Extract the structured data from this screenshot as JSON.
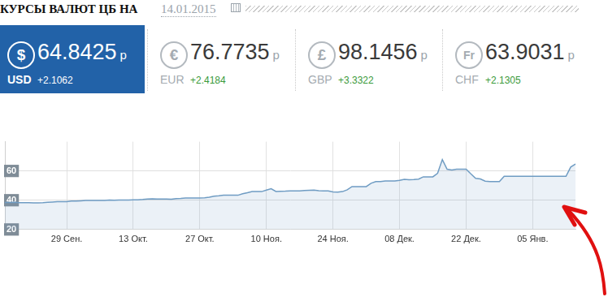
{
  "header": {
    "title": "КУРСЫ ВАЛЮТ ЦБ НА",
    "date": "14.01.2015"
  },
  "rates": [
    {
      "symbol": "$",
      "value": 64.8425,
      "unit": "р",
      "code": "USD",
      "change": "+2.1062"
    },
    {
      "symbol": "€",
      "value": 76.7735,
      "unit": "р",
      "code": "EUR",
      "change": "+2.4184"
    },
    {
      "symbol": "£",
      "value": 98.1456,
      "unit": "р",
      "code": "GBP",
      "change": "+3.3322"
    },
    {
      "symbol": "Fr",
      "value": 63.9031,
      "unit": "р",
      "code": "CHF",
      "change": "+2.1305"
    }
  ],
  "chart_data": {
    "type": "area",
    "color": "#6f9cc3",
    "grid": true,
    "ylim": [
      20,
      80
    ],
    "yticks": [
      20,
      40,
      60
    ],
    "categories": [
      null,
      null,
      null,
      null,
      null,
      null,
      null,
      null,
      null,
      null,
      null,
      null,
      null,
      "29 Сен.",
      null,
      null,
      null,
      null,
      null,
      null,
      null,
      null,
      null,
      null,
      null,
      null,
      null,
      "13 Окт.",
      null,
      null,
      null,
      null,
      null,
      null,
      null,
      null,
      null,
      null,
      null,
      null,
      null,
      "27 Окт.",
      null,
      null,
      null,
      null,
      null,
      null,
      null,
      null,
      null,
      null,
      null,
      null,
      null,
      "10 Ноя.",
      null,
      null,
      null,
      null,
      null,
      null,
      null,
      null,
      null,
      null,
      null,
      null,
      null,
      "24 Ноя.",
      null,
      null,
      null,
      null,
      null,
      null,
      null,
      null,
      null,
      null,
      null,
      null,
      null,
      "08 Дек.",
      null,
      null,
      null,
      null,
      null,
      null,
      null,
      null,
      null,
      null,
      null,
      null,
      null,
      "22 Дек.",
      null,
      null,
      null,
      null,
      null,
      null,
      null,
      null,
      null,
      null,
      null,
      null,
      null,
      "05 Янв.",
      null,
      null,
      null,
      null,
      null,
      null,
      null,
      null,
      null
    ],
    "values": [
      38.4,
      38.5,
      38.6,
      38.3,
      38.3,
      38.3,
      38.2,
      38.2,
      38.3,
      38.6,
      38.8,
      39.0,
      39.0,
      39.0,
      39.4,
      39.4,
      39.6,
      39.8,
      39.8,
      39.8,
      39.8,
      39.8,
      40.1,
      40.0,
      40.1,
      40.1,
      40.1,
      40.3,
      40.3,
      40.5,
      40.8,
      40.9,
      40.8,
      40.8,
      40.8,
      40.7,
      41.1,
      41.2,
      41.5,
      41.5,
      41.5,
      41.5,
      41.7,
      42.1,
      42.8,
      43.0,
      43.4,
      43.4,
      43.4,
      43.4,
      44.4,
      45.1,
      45.9,
      45.9,
      45.9,
      46.9,
      47.9,
      46.0,
      46.1,
      46.2,
      46.4,
      46.4,
      46.4,
      46.6,
      46.8,
      46.9,
      46.5,
      46.3,
      46.3,
      45.7,
      45.5,
      45.9,
      47.1,
      49.3,
      49.3,
      49.3,
      49.3,
      51.6,
      52.7,
      52.7,
      53.1,
      53.1,
      53.1,
      53.6,
      54.3,
      54.0,
      54.1,
      54.4,
      56.0,
      56.0,
      56.0,
      58.4,
      67.8,
      61.2,
      60.7,
      61.2,
      61.2,
      61.2,
      58.0,
      55.0,
      54.5,
      53.0,
      52.7,
      52.7,
      52.7,
      56.3,
      56.3,
      56.3,
      56.3,
      56.3,
      56.3,
      56.3,
      56.3,
      56.3,
      56.3,
      56.3,
      56.3,
      56.3,
      56.3,
      62.7,
      64.8
    ]
  }
}
